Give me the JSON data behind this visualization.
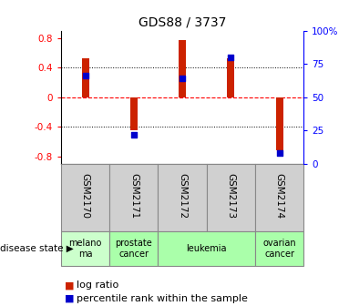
{
  "title": "GDS88 / 3737",
  "samples": [
    "GSM2170",
    "GSM2171",
    "GSM2172",
    "GSM2173",
    "GSM2174"
  ],
  "log_ratios": [
    0.52,
    -0.45,
    0.77,
    0.52,
    -0.72
  ],
  "percentile_ranks": [
    0.66,
    0.22,
    0.64,
    0.8,
    0.08
  ],
  "bar_color": "#cc2200",
  "dot_color": "#0000cc",
  "ylim": [
    -0.9,
    0.9
  ],
  "right_ylim": [
    0,
    100
  ],
  "right_yticks": [
    0,
    25,
    50,
    75,
    100
  ],
  "right_yticklabels": [
    "0",
    "25",
    "50",
    "75",
    "100%"
  ],
  "left_yticks": [
    -0.8,
    -0.4,
    0,
    0.4,
    0.8
  ],
  "disease_groups": [
    {
      "label": "melano\nma",
      "indices": [
        0
      ],
      "color": "#ccffcc"
    },
    {
      "label": "prostate\ncancer",
      "indices": [
        1
      ],
      "color": "#aaffaa"
    },
    {
      "label": "leukemia",
      "indices": [
        2,
        3
      ],
      "color": "#aaffaa"
    },
    {
      "label": "ovarian\ncancer",
      "indices": [
        4
      ],
      "color": "#aaffaa"
    }
  ],
  "sample_box_color": "#d0d0d0",
  "bar_width": 0.15,
  "dot_size": 25
}
